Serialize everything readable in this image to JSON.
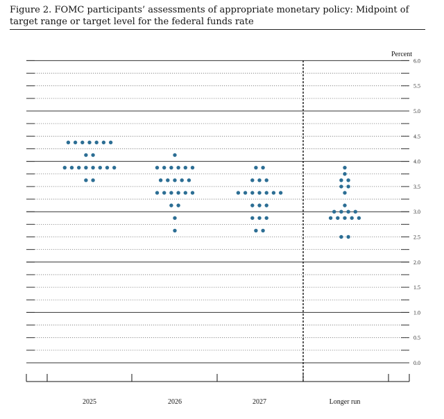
{
  "figure": {
    "title": "Figure 2.  FOMC participants’ assessments of appropriate monetary policy:  Midpoint of target range or target level for the federal funds rate"
  },
  "chart_data": {
    "type": "scatter",
    "subtype": "dot plot",
    "title": "Figure 2.  FOMC participants’ assessments of appropriate monetary policy:  Midpoint of target range or target level for the federal funds rate",
    "unit_label": "Percent",
    "categories": [
      "2025",
      "2026",
      "2027",
      "Longer run"
    ],
    "ylim": [
      -0.125,
      6.0
    ],
    "y_ticks": [
      "6.0",
      "5.5",
      "5.0",
      "4.5",
      "4.0",
      "3.5",
      "3.0",
      "2.5",
      "2.0",
      "1.5",
      "1.0",
      "0.5",
      "0.0"
    ],
    "dot_color": "#2c6e94",
    "grid": true,
    "divider_after_category": "2027",
    "series": [
      {
        "category": "2025",
        "dots": [
          {
            "y": 4.375,
            "count": 7
          },
          {
            "y": 4.125,
            "count": 2
          },
          {
            "y": 3.875,
            "count": 8
          },
          {
            "y": 3.625,
            "count": 2
          }
        ]
      },
      {
        "category": "2026",
        "dots": [
          {
            "y": 4.125,
            "count": 1
          },
          {
            "y": 3.875,
            "count": 6
          },
          {
            "y": 3.625,
            "count": 5
          },
          {
            "y": 3.375,
            "count": 6
          },
          {
            "y": 3.125,
            "count": 2
          },
          {
            "y": 2.875,
            "count": 1
          },
          {
            "y": 2.625,
            "count": 1
          }
        ]
      },
      {
        "category": "2027",
        "dots": [
          {
            "y": 3.875,
            "count": 2
          },
          {
            "y": 3.625,
            "count": 3
          },
          {
            "y": 3.375,
            "count": 7
          },
          {
            "y": 3.125,
            "count": 3
          },
          {
            "y": 2.875,
            "count": 3
          },
          {
            "y": 2.625,
            "count": 2
          }
        ]
      },
      {
        "category": "Longer run",
        "dots": [
          {
            "y": 3.875,
            "count": 1
          },
          {
            "y": 3.75,
            "count": 1
          },
          {
            "y": 3.625,
            "count": 2
          },
          {
            "y": 3.5,
            "count": 2
          },
          {
            "y": 3.375,
            "count": 1
          },
          {
            "y": 3.125,
            "count": 1
          },
          {
            "y": 3.0,
            "count": 4
          },
          {
            "y": 2.875,
            "count": 5
          },
          {
            "y": 2.5,
            "count": 2
          }
        ]
      }
    ]
  }
}
